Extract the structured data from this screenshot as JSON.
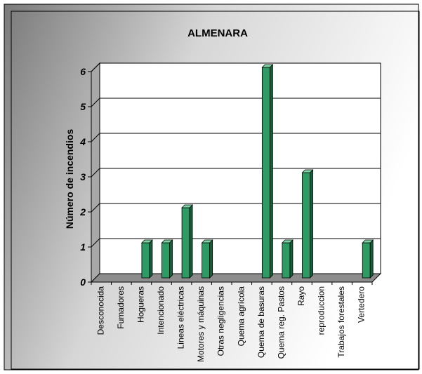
{
  "chart_data": {
    "type": "bar",
    "title": "ALMENARA",
    "xlabel": "",
    "ylabel": "Número de incendios",
    "ylim": [
      0,
      6
    ],
    "yticks": [
      "0",
      "1",
      "2",
      "3",
      "4",
      "5",
      "6"
    ],
    "grid": true,
    "legend": "none",
    "categories": [
      "Desconocida",
      "Fumadores",
      "Hogueras",
      "Intencionado",
      "Lineas eléctricas",
      "Motores y máquinas",
      "Otras negligencias",
      "Quema agrícola",
      "Quema de basuras",
      "Quema reg. Pastos",
      "Rayo",
      "reproduccion",
      "Trabajos forestales",
      "Vertedero"
    ],
    "values": [
      0,
      0,
      1,
      1,
      2,
      1,
      0,
      0,
      6,
      1,
      3,
      0,
      0,
      1
    ],
    "colors": {
      "bar_front": "#2e9a64",
      "bar_side": "#155f3a",
      "bar_top": "#7fd4a6",
      "floor": "#8c8c8c",
      "wall_left": "#a8a8a8"
    }
  }
}
